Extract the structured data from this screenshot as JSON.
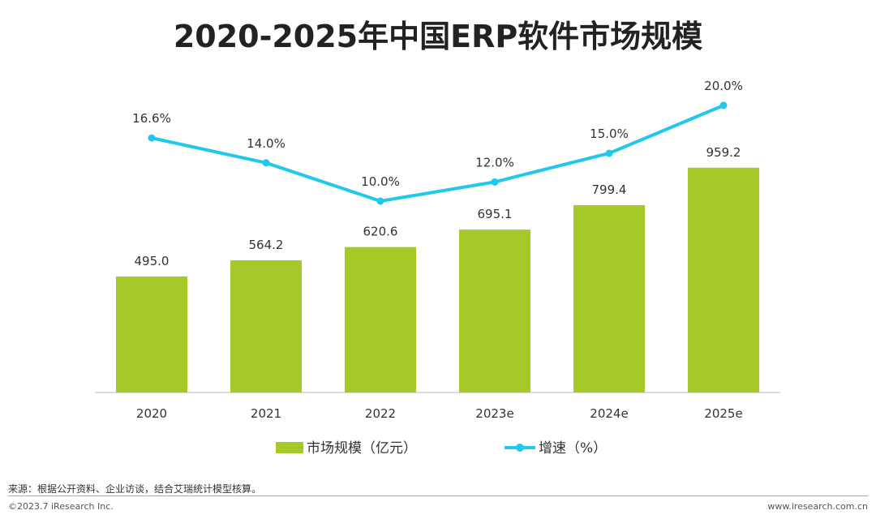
{
  "chart_data": {
    "type": "bar+line",
    "title": "2020-2025年中国ERP软件市场规模",
    "categories": [
      "2020",
      "2021",
      "2022",
      "2023e",
      "2024e",
      "2025e"
    ],
    "series": [
      {
        "name": "市场规模（亿元）",
        "type": "bar",
        "values": [
          495.0,
          564.2,
          620.6,
          695.1,
          799.4,
          959.2
        ],
        "labels": [
          "495.0",
          "564.2",
          "620.6",
          "695.1",
          "799.4",
          "959.2"
        ],
        "color": "#a5c926"
      },
      {
        "name": "增速（%）",
        "type": "line",
        "values": [
          16.6,
          14.0,
          10.0,
          12.0,
          15.0,
          20.0
        ],
        "labels": [
          "16.6%",
          "14.0%",
          "10.0%",
          "12.0%",
          "15.0%",
          "20.0%"
        ],
        "color": "#22c7ee"
      }
    ],
    "legend": "bottom",
    "grid": false
  },
  "footer": {
    "source": "来源：根据公开资料、企业访谈，结合艾瑞统计模型核算。",
    "copyright": "©2023.7 iResearch Inc.",
    "website": "www.iresearch.com.cn"
  }
}
